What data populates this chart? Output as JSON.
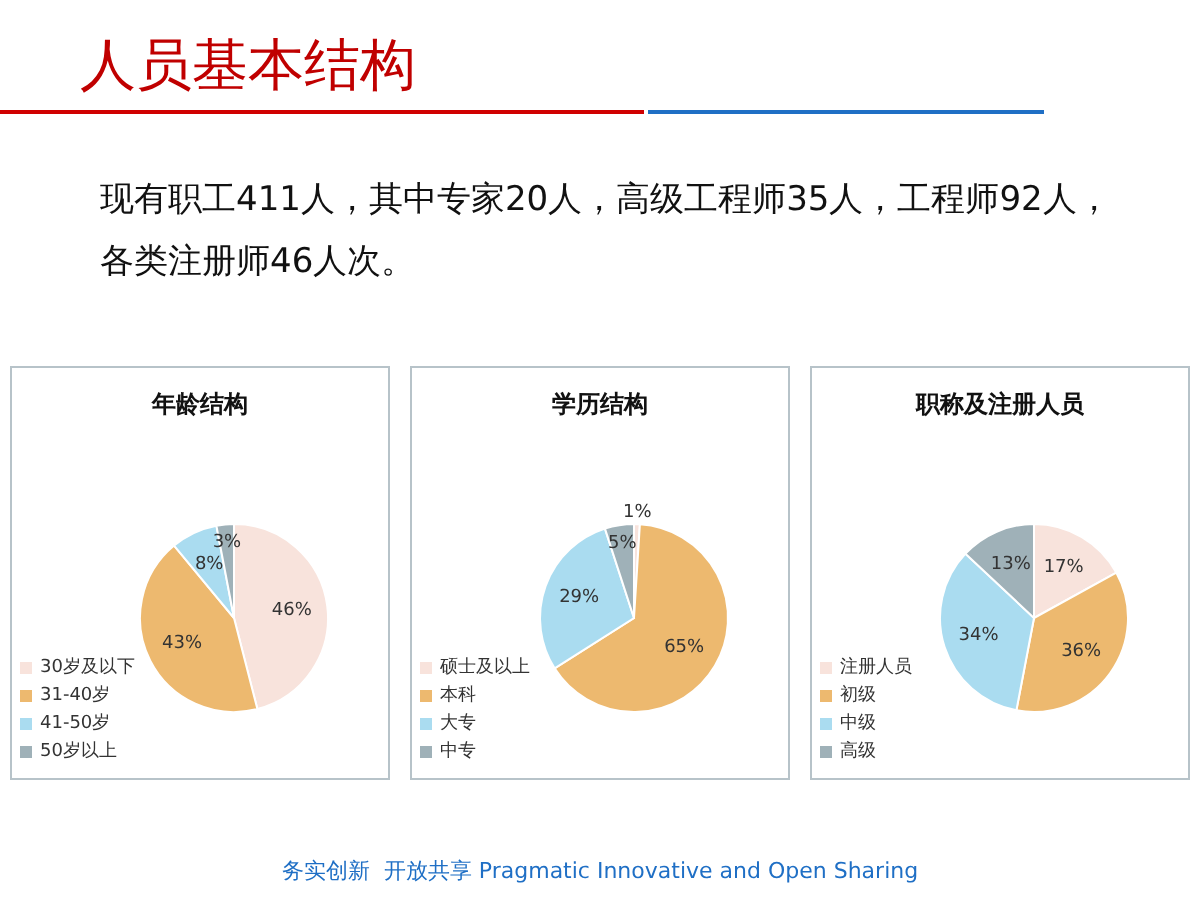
{
  "chart_data": [
    {
      "type": "other",
      "title": "人员基本结构",
      "annotations": [
        "现有职工411人，其中专家20人，高级工程师35人，工程师92人，",
        "各类注册师46人次。",
        "务实创新  开放共享 Pragmatic Innovative and Open Sharing"
      ]
    },
    {
      "type": "pie",
      "title": "年龄结构",
      "categories": [
        "30岁及以下",
        "31-40岁",
        "41-50岁",
        "50岁以上"
      ],
      "values": [
        46,
        43,
        8,
        3
      ],
      "colors": [
        "#f8e3dc",
        "#edb96f",
        "#aadcf0",
        "#9fb1b8"
      ],
      "value_labels": [
        "46%",
        "43%",
        "8%",
        "3%"
      ],
      "legend": "bottom left"
    },
    {
      "type": "pie",
      "title": "学历结构",
      "categories": [
        "硕士及以上",
        "本科",
        "大专",
        "中专"
      ],
      "values": [
        1,
        65,
        29,
        5
      ],
      "colors": [
        "#f8e3dc",
        "#edb96f",
        "#aadcf0",
        "#9fb1b8"
      ],
      "value_labels": [
        "1%",
        "65%",
        "29%",
        "5%"
      ],
      "legend": "bottom left"
    },
    {
      "type": "pie",
      "title": "职称及注册人员",
      "categories": [
        "注册人员",
        "初级",
        "中级",
        "高级"
      ],
      "values": [
        17,
        36,
        34,
        13
      ],
      "colors": [
        "#f8e3dc",
        "#edb96f",
        "#aadcf0",
        "#9fb1b8"
      ],
      "value_labels": [
        "17%",
        "36%",
        "34%",
        "13%"
      ],
      "legend": "bottom left"
    }
  ]
}
